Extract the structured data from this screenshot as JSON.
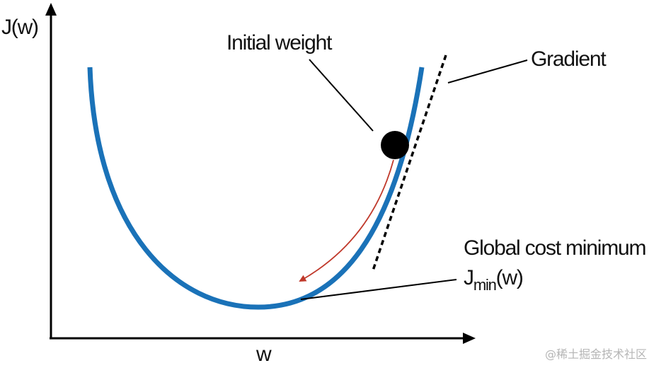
{
  "axes": {
    "y_label": "J(w)",
    "x_label": "w"
  },
  "annotations": {
    "initial_weight": "Initial weight",
    "gradient": "Gradient",
    "global_minimum": "Global cost minimum",
    "jmin": {
      "base": "J",
      "subscript": "min",
      "suffix": "(w)"
    }
  },
  "watermark": "@稀土掘金技术社区"
}
